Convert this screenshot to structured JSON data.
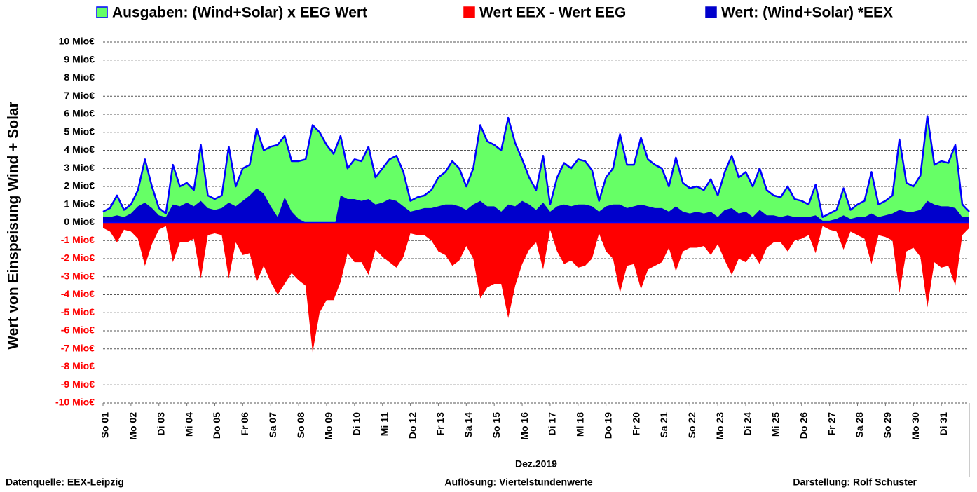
{
  "chart_data": {
    "type": "area",
    "y_label": "Wert von Einspeisung Wind + Solar",
    "x_label": "Dez.2019",
    "footer": [
      "Datenquelle:  EEX-Leipzig",
      "Auflösung: Viertelstundenwerte",
      "Darstellung: Rolf Schuster"
    ],
    "x": [
      0,
      0.25,
      0.5,
      0.75,
      1,
      1.25,
      1.5,
      1.75,
      2,
      2.25,
      2.5,
      2.75,
      3,
      3.25,
      3.5,
      3.75,
      4,
      4.25,
      4.5,
      4.75,
      5,
      5.25,
      5.5,
      5.75,
      6,
      6.25,
      6.5,
      6.75,
      7,
      7.25,
      7.5,
      7.75,
      8,
      8.25,
      8.5,
      8.75,
      9,
      9.25,
      9.5,
      9.75,
      10,
      10.25,
      10.5,
      10.75,
      11,
      11.25,
      11.5,
      11.75,
      12,
      12.25,
      12.5,
      12.75,
      13,
      13.25,
      13.5,
      13.75,
      14,
      14.25,
      14.5,
      14.75,
      15,
      15.25,
      15.5,
      15.75,
      16,
      16.25,
      16.5,
      16.75,
      17,
      17.25,
      17.5,
      17.75,
      18,
      18.25,
      18.5,
      18.75,
      19,
      19.25,
      19.5,
      19.75,
      20,
      20.25,
      20.5,
      20.75,
      21,
      21.25,
      21.5,
      21.75,
      22,
      22.25,
      22.5,
      22.75,
      23,
      23.25,
      23.5,
      23.75,
      24,
      24.25,
      24.5,
      24.75,
      25,
      25.25,
      25.5,
      25.75,
      26,
      26.25,
      26.5,
      26.75,
      27,
      27.25,
      27.5,
      27.75,
      28,
      28.25,
      28.5,
      28.75,
      29,
      29.25,
      29.5,
      29.75,
      30,
      30.25,
      30.5,
      30.75,
      31
    ],
    "series": [
      {
        "name": "Ausgaben: (Wind+Solar) x EEG Wert",
        "color": "#66ff66",
        "line_color": "#0000ff",
        "values": [
          0.6,
          0.8,
          1.5,
          0.7,
          1.0,
          1.8,
          3.5,
          2.0,
          0.8,
          0.5,
          3.2,
          2.0,
          2.2,
          1.8,
          4.3,
          1.5,
          1.3,
          1.5,
          4.2,
          2.0,
          3.0,
          3.2,
          5.2,
          4.0,
          4.2,
          4.3,
          4.8,
          3.4,
          3.4,
          3.5,
          5.4,
          5.0,
          4.3,
          3.8,
          4.8,
          3.0,
          3.5,
          3.4,
          4.2,
          2.5,
          3.0,
          3.5,
          3.7,
          2.8,
          1.2,
          1.4,
          1.5,
          1.8,
          2.5,
          2.8,
          3.4,
          3.0,
          2.0,
          3.0,
          5.4,
          4.5,
          4.3,
          4.0,
          5.8,
          4.4,
          3.5,
          2.5,
          1.8,
          3.7,
          1.0,
          2.5,
          3.3,
          3.0,
          3.5,
          3.4,
          2.9,
          1.2,
          2.5,
          3.0,
          4.9,
          3.2,
          3.2,
          4.7,
          3.5,
          3.2,
          3.0,
          2.0,
          3.6,
          2.2,
          1.9,
          2.0,
          1.8,
          2.4,
          1.5,
          2.8,
          3.7,
          2.5,
          2.8,
          2.0,
          3.0,
          1.8,
          1.5,
          1.4,
          2.0,
          1.3,
          1.2,
          1.0,
          2.1,
          0.3,
          0.5,
          0.7,
          1.9,
          0.7,
          1.0,
          1.2,
          2.8,
          1.0,
          1.2,
          1.5,
          4.6,
          2.2,
          2.0,
          2.6,
          5.9,
          3.2,
          3.4,
          3.3,
          4.3,
          1.0,
          0.6
        ]
      },
      {
        "name": "Wert EEX - Wert EEG",
        "color": "#ff0000",
        "values": [
          -0.3,
          -0.5,
          -1.1,
          -0.4,
          -0.5,
          -0.9,
          -2.4,
          -1.2,
          -0.4,
          -0.2,
          -2.2,
          -1.1,
          -1.1,
          -0.9,
          -3.1,
          -0.7,
          -0.6,
          -0.7,
          -3.1,
          -1.1,
          -1.8,
          -1.7,
          -3.3,
          -2.4,
          -3.3,
          -4.0,
          -3.4,
          -2.8,
          -3.2,
          -3.5,
          -7.2,
          -5.0,
          -4.3,
          -4.3,
          -3.3,
          -1.7,
          -2.2,
          -2.2,
          -2.9,
          -1.5,
          -1.9,
          -2.2,
          -2.5,
          -1.9,
          -0.6,
          -0.7,
          -0.7,
          -1.0,
          -1.6,
          -1.8,
          -2.4,
          -2.1,
          -1.3,
          -2.0,
          -4.2,
          -3.6,
          -3.4,
          -3.4,
          -5.3,
          -3.5,
          -2.3,
          -1.5,
          -1.1,
          -2.6,
          -0.4,
          -1.6,
          -2.3,
          -2.1,
          -2.5,
          -2.4,
          -2.0,
          -0.6,
          -1.6,
          -2.0,
          -3.9,
          -2.4,
          -2.3,
          -3.7,
          -2.6,
          -2.4,
          -2.2,
          -1.4,
          -2.7,
          -1.6,
          -1.4,
          -1.4,
          -1.3,
          -1.8,
          -1.2,
          -2.1,
          -2.9,
          -2.0,
          -2.2,
          -1.7,
          -2.3,
          -1.4,
          -1.1,
          -1.1,
          -1.6,
          -1.0,
          -0.9,
          -0.7,
          -1.7,
          -0.2,
          -0.4,
          -0.5,
          -1.5,
          -0.5,
          -0.7,
          -0.9,
          -2.3,
          -0.7,
          -0.8,
          -1.0,
          -3.9,
          -1.6,
          -1.4,
          -1.9,
          -4.7,
          -2.2,
          -2.5,
          -2.4,
          -3.5,
          -0.7,
          -0.3
        ]
      },
      {
        "name": "Wert: (Wind+Solar) *EEX",
        "color": "#0000cc",
        "values": [
          0.3,
          0.3,
          0.4,
          0.3,
          0.5,
          0.9,
          1.1,
          0.8,
          0.4,
          0.3,
          1.0,
          0.9,
          1.1,
          0.9,
          1.2,
          0.8,
          0.7,
          0.8,
          1.1,
          0.9,
          1.2,
          1.5,
          1.9,
          1.6,
          0.9,
          0.3,
          1.4,
          0.6,
          0.2,
          0.0,
          -1.8,
          0.0,
          0.0,
          -0.5,
          1.5,
          1.3,
          1.3,
          1.2,
          1.3,
          1.0,
          1.1,
          1.3,
          1.2,
          0.9,
          0.6,
          0.7,
          0.8,
          0.8,
          0.9,
          1.0,
          1.0,
          0.9,
          0.7,
          1.0,
          1.2,
          0.9,
          0.9,
          0.6,
          1.0,
          0.9,
          1.2,
          1.0,
          0.7,
          1.1,
          0.6,
          0.9,
          1.0,
          0.9,
          1.0,
          1.0,
          0.9,
          0.6,
          0.9,
          1.0,
          1.0,
          0.8,
          0.9,
          1.0,
          0.9,
          0.8,
          0.8,
          0.6,
          0.9,
          0.6,
          0.5,
          0.6,
          0.5,
          0.6,
          0.3,
          0.7,
          0.8,
          0.5,
          0.6,
          0.3,
          0.7,
          0.4,
          0.4,
          0.3,
          0.4,
          0.3,
          0.3,
          0.3,
          0.4,
          0.1,
          0.1,
          0.2,
          0.4,
          0.2,
          0.3,
          0.3,
          0.5,
          0.3,
          0.4,
          0.5,
          0.7,
          0.6,
          0.6,
          0.7,
          1.2,
          1.0,
          0.9,
          0.9,
          0.8,
          0.3,
          0.3
        ]
      }
    ],
    "xlim": [
      0,
      31
    ],
    "xticks": [
      {
        "value": 0,
        "label": "So 01"
      },
      {
        "value": 1,
        "label": "Mo 02"
      },
      {
        "value": 2,
        "label": "Di 03"
      },
      {
        "value": 3,
        "label": "Mi 04"
      },
      {
        "value": 4,
        "label": "Do 05"
      },
      {
        "value": 5,
        "label": "Fr 06"
      },
      {
        "value": 6,
        "label": "Sa 07"
      },
      {
        "value": 7,
        "label": "So 08"
      },
      {
        "value": 8,
        "label": "Mo 09"
      },
      {
        "value": 9,
        "label": "Di 10"
      },
      {
        "value": 10,
        "label": "Mi 11"
      },
      {
        "value": 11,
        "label": "Do 12"
      },
      {
        "value": 12,
        "label": "Fr 13"
      },
      {
        "value": 13,
        "label": "Sa 14"
      },
      {
        "value": 14,
        "label": "So 15"
      },
      {
        "value": 15,
        "label": "Mo 16"
      },
      {
        "value": 16,
        "label": "Di 17"
      },
      {
        "value": 17,
        "label": "Mi 18"
      },
      {
        "value": 18,
        "label": "Do 19"
      },
      {
        "value": 19,
        "label": "Fr 20"
      },
      {
        "value": 20,
        "label": "Sa 21"
      },
      {
        "value": 21,
        "label": "So 22"
      },
      {
        "value": 22,
        "label": "Mo 23"
      },
      {
        "value": 23,
        "label": "Di 24"
      },
      {
        "value": 24,
        "label": "Mi 25"
      },
      {
        "value": 25,
        "label": "Do 26"
      },
      {
        "value": 26,
        "label": "Fr 27"
      },
      {
        "value": 27,
        "label": "Sa 28"
      },
      {
        "value": 28,
        "label": "So 29"
      },
      {
        "value": 29,
        "label": "Mo 30"
      },
      {
        "value": 30,
        "label": "Di 31"
      }
    ],
    "ylim": [
      -10,
      10
    ],
    "yticks": [
      {
        "value": 10,
        "label": "10 Mio€"
      },
      {
        "value": 9,
        "label": "9 Mio€"
      },
      {
        "value": 8,
        "label": "8 Mio€"
      },
      {
        "value": 7,
        "label": "7 Mio€"
      },
      {
        "value": 6,
        "label": "6 Mio€"
      },
      {
        "value": 5,
        "label": "5 Mio€"
      },
      {
        "value": 4,
        "label": "4 Mio€"
      },
      {
        "value": 3,
        "label": "3 Mio€"
      },
      {
        "value": 2,
        "label": "2 Mio€"
      },
      {
        "value": 1,
        "label": "1 Mio€"
      },
      {
        "value": 0,
        "label": "0 Mio€"
      },
      {
        "value": -1,
        "label": "-1 Mio€"
      },
      {
        "value": -2,
        "label": "-2 Mio€"
      },
      {
        "value": -3,
        "label": "-3 Mio€"
      },
      {
        "value": -4,
        "label": "-4 Mio€"
      },
      {
        "value": -5,
        "label": "-5 Mio€"
      },
      {
        "value": -6,
        "label": "-6 Mio€"
      },
      {
        "value": -7,
        "label": "-7 Mio€"
      },
      {
        "value": -8,
        "label": "-8 Mio€"
      },
      {
        "value": -9,
        "label": "-9 Mio€"
      },
      {
        "value": -10,
        "label": "-10 Mio€"
      }
    ],
    "negative_tick_color": "#ff0000",
    "grid": true,
    "legend": "top"
  }
}
